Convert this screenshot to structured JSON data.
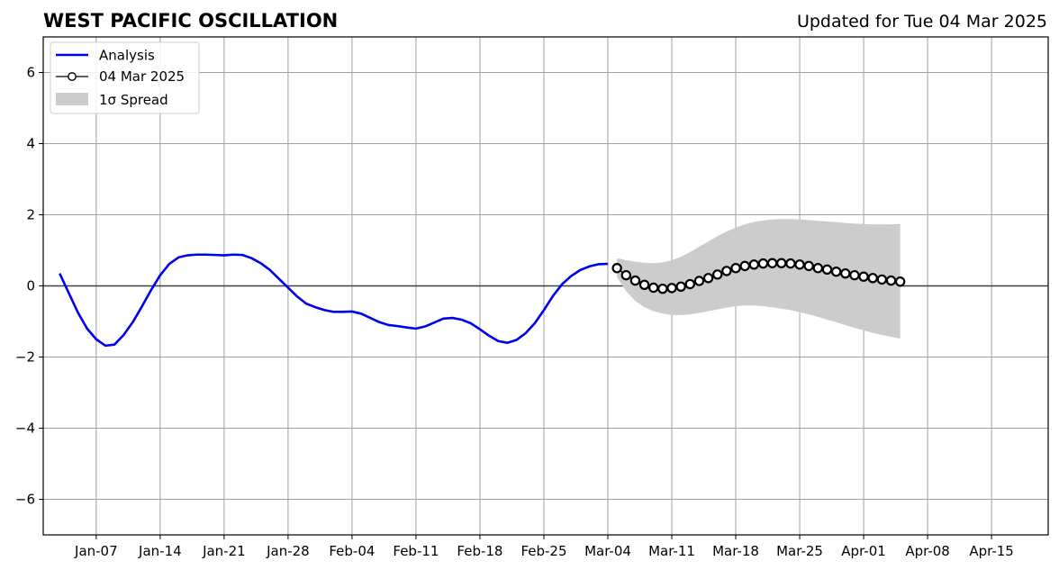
{
  "chart_data": {
    "type": "line",
    "title": "WEST PACIFIC OSCILLATION",
    "subtitle": "Updated for Tue 04 Mar 2025",
    "xlabel": "",
    "ylabel": "",
    "ylim": [
      -7,
      7
    ],
    "xlim_days": [
      -5.8,
      104.2
    ],
    "x_ticks": [
      {
        "label": "Jan-07",
        "day": 0
      },
      {
        "label": "Jan-14",
        "day": 7
      },
      {
        "label": "Jan-21",
        "day": 14
      },
      {
        "label": "Jan-28",
        "day": 21
      },
      {
        "label": "Feb-04",
        "day": 28
      },
      {
        "label": "Feb-11",
        "day": 35
      },
      {
        "label": "Feb-18",
        "day": 42
      },
      {
        "label": "Feb-25",
        "day": 49
      },
      {
        "label": "Mar-04",
        "day": 56
      },
      {
        "label": "Mar-11",
        "day": 63
      },
      {
        "label": "Mar-18",
        "day": 70
      },
      {
        "label": "Mar-25",
        "day": 77
      },
      {
        "label": "Apr-01",
        "day": 84
      },
      {
        "label": "Apr-08",
        "day": 91
      },
      {
        "label": "Apr-15",
        "day": 98
      }
    ],
    "y_ticks": [
      {
        "label": "−6",
        "value": -6
      },
      {
        "label": "−4",
        "value": -4
      },
      {
        "label": "−2",
        "value": -2
      },
      {
        "label": "0",
        "value": 0
      },
      {
        "label": "2",
        "value": 2
      },
      {
        "label": "4",
        "value": 4
      },
      {
        "label": "6",
        "value": 6
      }
    ],
    "grid": true,
    "legend": {
      "placement": "top-left",
      "entries": [
        {
          "label": "Analysis",
          "style": "line",
          "color": "#0000ee"
        },
        {
          "label": "04 Mar 2025",
          "style": "line-marker",
          "color": "#000000"
        },
        {
          "label": "1σ Spread",
          "style": "patch",
          "color": "#cccccc"
        }
      ]
    },
    "series": [
      {
        "name": "Analysis",
        "color": "#0000ee",
        "x_days": [
          -4,
          -3,
          -2,
          -1,
          0,
          1,
          2,
          3,
          4,
          5,
          6,
          7,
          8,
          9,
          10,
          11,
          12,
          13,
          14,
          15,
          16,
          17,
          18,
          19,
          20,
          21,
          22,
          23,
          24,
          25,
          26,
          27,
          28,
          29,
          30,
          31,
          32,
          33,
          34,
          35,
          36,
          37,
          38,
          39,
          40,
          41,
          42,
          43,
          44,
          45,
          46,
          47,
          48,
          49,
          50,
          51,
          52,
          53,
          54,
          55,
          56
        ],
        "values": [
          0.35,
          -0.2,
          -0.75,
          -1.2,
          -1.5,
          -1.68,
          -1.65,
          -1.38,
          -1.02,
          -0.58,
          -0.12,
          0.3,
          0.62,
          0.8,
          0.86,
          0.88,
          0.88,
          0.87,
          0.86,
          0.88,
          0.87,
          0.78,
          0.64,
          0.45,
          0.2,
          -0.05,
          -0.3,
          -0.5,
          -0.6,
          -0.68,
          -0.73,
          -0.73,
          -0.72,
          -0.78,
          -0.9,
          -1.02,
          -1.1,
          -1.13,
          -1.17,
          -1.2,
          -1.14,
          -1.03,
          -0.92,
          -0.9,
          -0.95,
          -1.05,
          -1.22,
          -1.4,
          -1.55,
          -1.6,
          -1.52,
          -1.33,
          -1.05,
          -0.68,
          -0.28,
          0.05,
          0.28,
          0.45,
          0.55,
          0.61,
          0.62
        ]
      },
      {
        "name": "04 Mar 2025",
        "color": "#000000",
        "x_days": [
          57,
          58,
          59,
          60,
          61,
          62,
          63,
          64,
          65,
          66,
          67,
          68,
          69,
          70,
          71,
          72,
          73,
          74,
          75,
          76,
          77,
          78,
          79,
          80,
          81,
          82,
          83,
          84,
          85,
          86,
          87,
          88
        ],
        "values": [
          0.5,
          0.3,
          0.15,
          0.03,
          -0.05,
          -0.08,
          -0.06,
          -0.02,
          0.05,
          0.14,
          0.22,
          0.32,
          0.42,
          0.5,
          0.56,
          0.6,
          0.63,
          0.64,
          0.64,
          0.63,
          0.6,
          0.56,
          0.5,
          0.46,
          0.4,
          0.35,
          0.3,
          0.26,
          0.22,
          0.18,
          0.15,
          0.12
        ]
      }
    ],
    "spread": {
      "name": "1σ Spread",
      "color": "#cccccc",
      "x_days": [
        57,
        58,
        59,
        60,
        61,
        62,
        63,
        64,
        65,
        66,
        67,
        68,
        69,
        70,
        71,
        72,
        73,
        74,
        75,
        76,
        77,
        78,
        79,
        80,
        81,
        82,
        83,
        84,
        85,
        86,
        87,
        88
      ],
      "upper": [
        0.78,
        0.72,
        0.68,
        0.65,
        0.64,
        0.66,
        0.72,
        0.82,
        0.95,
        1.1,
        1.25,
        1.4,
        1.53,
        1.64,
        1.73,
        1.8,
        1.84,
        1.87,
        1.88,
        1.88,
        1.87,
        1.85,
        1.83,
        1.81,
        1.79,
        1.77,
        1.75,
        1.74,
        1.73,
        1.73,
        1.73,
        1.74
      ],
      "lower": [
        0.25,
        -0.15,
        -0.42,
        -0.6,
        -0.71,
        -0.78,
        -0.82,
        -0.82,
        -0.8,
        -0.76,
        -0.71,
        -0.66,
        -0.61,
        -0.57,
        -0.55,
        -0.55,
        -0.57,
        -0.6,
        -0.64,
        -0.68,
        -0.74,
        -0.8,
        -0.87,
        -0.95,
        -1.02,
        -1.1,
        -1.18,
        -1.25,
        -1.32,
        -1.38,
        -1.43,
        -1.48
      ]
    }
  }
}
